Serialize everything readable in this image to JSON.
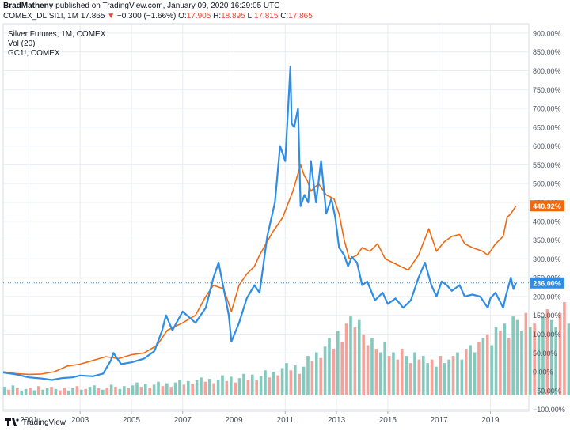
{
  "header": {
    "author": "BradMatheny",
    "published_text": "published on TradingView.com, January 09, 2020 16:29:05 UTC",
    "symbol": "COMEX_DL:SI1!, 1M",
    "last": "17.865",
    "change": "−0.300 (−1.66%)",
    "open_label": "O:",
    "open": "17.905",
    "high_label": "H:",
    "high": "18.895",
    "low_label": "L:",
    "low": "17.815",
    "close_label": "C:",
    "close": "17.865"
  },
  "legend": {
    "line1": "Silver Futures, 1M, COMEX",
    "line2": "Vol (20)",
    "line3": "GC1!, COMEX"
  },
  "footer": {
    "brand": "TradingView"
  },
  "colors": {
    "silver": "#2f8ee4",
    "gold": "#ee6a11",
    "vol_up": "#83c9bd",
    "vol_down": "#f1a39c",
    "grid": "#e8ecf2",
    "axis_text": "#4a4f5c"
  },
  "chart_data": {
    "type": "line",
    "y_scale": "percent",
    "ylim": [
      -105,
      925
    ],
    "y_ticks": [
      -100,
      -50,
      0,
      50,
      100,
      150,
      200,
      250,
      300,
      350,
      400,
      450,
      500,
      550,
      600,
      650,
      700,
      750,
      800,
      850,
      900
    ],
    "y_tick_labels": [
      "−100.00%",
      "−50.00%",
      "0.00%",
      "50.00%",
      "100.00%",
      "150.00%",
      "200.00%",
      "250.00%",
      "300.00%",
      "350.00%",
      "400.00%",
      "450.00%",
      "500.00%",
      "550.00%",
      "600.00%",
      "650.00%",
      "700.00%",
      "750.00%",
      "800.00%",
      "850.00%",
      "900.00%"
    ],
    "xlim": [
      2000.0,
      2020.5
    ],
    "x_ticks": [
      2001,
      2003,
      2005,
      2007,
      2009,
      2011,
      2013,
      2015,
      2017,
      2019
    ],
    "x_tick_labels": [
      "2001",
      "2003",
      "2005",
      "2007",
      "2009",
      "2011",
      "2013",
      "2015",
      "2017",
      "2019"
    ],
    "last_value_labels": {
      "silver": "236.00%",
      "gold": "440.92%"
    },
    "series": [
      {
        "key": "silver",
        "x": [
          2000.0,
          2000.5,
          2001.0,
          2001.5,
          2001.9,
          2002.3,
          2002.7,
          2003.0,
          2003.5,
          2003.9,
          2004.2,
          2004.3,
          2004.6,
          2005.0,
          2005.5,
          2005.9,
          2006.2,
          2006.35,
          2006.6,
          2007.0,
          2007.5,
          2007.9,
          2008.2,
          2008.4,
          2008.6,
          2008.8,
          2008.9,
          2009.2,
          2009.5,
          2009.8,
          2010.0,
          2010.3,
          2010.6,
          2010.8,
          2011.0,
          2011.2,
          2011.25,
          2011.35,
          2011.5,
          2011.6,
          2011.75,
          2011.9,
          2012.0,
          2012.2,
          2012.4,
          2012.6,
          2012.8,
          2012.95,
          2013.1,
          2013.3,
          2013.45,
          2013.6,
          2013.8,
          2014.0,
          2014.2,
          2014.5,
          2014.8,
          2015.0,
          2015.3,
          2015.6,
          2015.9,
          2016.2,
          2016.45,
          2016.7,
          2016.9,
          2017.1,
          2017.3,
          2017.5,
          2017.8,
          2018.0,
          2018.3,
          2018.6,
          2018.9,
          2019.0,
          2019.2,
          2019.5,
          2019.6,
          2019.8,
          2019.9,
          2020.0
        ],
        "values": [
          -2,
          -7,
          -15,
          -18,
          -22,
          -17,
          -15,
          -10,
          -12,
          -5,
          30,
          50,
          20,
          25,
          35,
          55,
          110,
          150,
          110,
          160,
          130,
          170,
          250,
          290,
          220,
          150,
          80,
          130,
          195,
          230,
          210,
          360,
          450,
          600,
          560,
          810,
          660,
          650,
          700,
          440,
          470,
          450,
          560,
          450,
          560,
          420,
          460,
          410,
          330,
          310,
          280,
          305,
          290,
          230,
          240,
          190,
          210,
          180,
          195,
          170,
          190,
          250,
          290,
          230,
          200,
          240,
          230,
          215,
          230,
          200,
          205,
          200,
          170,
          195,
          210,
          170,
          200,
          250,
          220,
          236
        ]
      },
      {
        "key": "gold",
        "x": [
          2000.0,
          2000.5,
          2001.0,
          2001.5,
          2002.0,
          2002.5,
          2003.0,
          2003.5,
          2004.0,
          2004.5,
          2005.0,
          2005.5,
          2006.0,
          2006.4,
          2006.7,
          2007.0,
          2007.5,
          2007.9,
          2008.2,
          2008.6,
          2008.9,
          2009.2,
          2009.5,
          2009.8,
          2010.0,
          2010.5,
          2010.9,
          2011.3,
          2011.6,
          2011.75,
          2011.85,
          2012.0,
          2012.3,
          2012.6,
          2012.9,
          2013.1,
          2013.3,
          2013.5,
          2013.8,
          2014.0,
          2014.3,
          2014.6,
          2014.9,
          2015.2,
          2015.5,
          2015.8,
          2016.0,
          2016.2,
          2016.6,
          2016.9,
          2017.2,
          2017.5,
          2017.8,
          2018.0,
          2018.3,
          2018.7,
          2018.9,
          2019.2,
          2019.5,
          2019.65,
          2019.8,
          2020.0
        ],
        "values": [
          0,
          -5,
          -7,
          -6,
          0,
          15,
          20,
          30,
          40,
          35,
          45,
          50,
          70,
          110,
          120,
          130,
          150,
          200,
          230,
          220,
          160,
          230,
          260,
          280,
          310,
          370,
          410,
          480,
          550,
          520,
          510,
          480,
          500,
          470,
          460,
          420,
          350,
          300,
          310,
          330,
          320,
          340,
          300,
          290,
          280,
          270,
          290,
          310,
          380,
          320,
          345,
          360,
          365,
          340,
          330,
          320,
          310,
          340,
          360,
          410,
          420,
          441
        ]
      }
    ],
    "volume": {
      "x_start": 2000.05,
      "step": 0.1667,
      "values": [
        12,
        8,
        14,
        10,
        6,
        9,
        11,
        7,
        13,
        8,
        10,
        12,
        9,
        7,
        11,
        6,
        10,
        13,
        8,
        9,
        12,
        14,
        10,
        8,
        11,
        15,
        12,
        9,
        13,
        10,
        14,
        18,
        12,
        16,
        11,
        15,
        19,
        13,
        17,
        12,
        18,
        22,
        15,
        20,
        16,
        21,
        25,
        19,
        23,
        17,
        22,
        28,
        20,
        26,
        18,
        24,
        30,
        22,
        29,
        21,
        27,
        35,
        25,
        33,
        28,
        38,
        45,
        35,
        42,
        30,
        40,
        55,
        48,
        60,
        52,
        68,
        80,
        65,
        90,
        75,
        100,
        110,
        95,
        105,
        85,
        70,
        80,
        65,
        60,
        75,
        55,
        60,
        50,
        65,
        55,
        45,
        60,
        50,
        55,
        45,
        50,
        40,
        55,
        45,
        50,
        55,
        60,
        50,
        65,
        70,
        60,
        75,
        80,
        85,
        70,
        95,
        90,
        100,
        80,
        110,
        105,
        90,
        115,
        95,
        100,
        85,
        110,
        120,
        105,
        95,
        115,
        130,
        100,
        110,
        85
      ],
      "up": [
        1,
        0,
        1,
        0,
        1,
        1,
        0,
        1,
        0,
        1,
        1,
        0,
        1,
        0,
        0,
        1,
        1,
        0,
        1,
        0,
        1,
        1,
        0,
        1,
        0,
        1,
        0,
        1,
        1,
        0,
        1,
        1,
        0,
        1,
        0,
        1,
        1,
        0,
        1,
        0,
        1,
        1,
        0,
        1,
        0,
        1,
        1,
        0,
        1,
        0,
        1,
        1,
        0,
        1,
        0,
        1,
        1,
        0,
        1,
        0,
        1,
        1,
        0,
        1,
        0,
        1,
        1,
        0,
        1,
        0,
        1,
        1,
        0,
        1,
        0,
        1,
        1,
        0,
        1,
        0,
        0,
        1,
        0,
        1,
        0,
        0,
        1,
        0,
        1,
        1,
        0,
        1,
        0,
        0,
        1,
        0,
        1,
        0,
        1,
        1,
        0,
        1,
        0,
        1,
        1,
        0,
        1,
        1,
        0,
        1,
        1,
        0,
        1,
        0,
        1,
        1,
        0,
        1,
        0,
        1,
        1,
        1,
        0,
        1,
        0,
        1,
        1,
        0,
        1,
        1,
        0,
        0,
        1,
        1,
        0
      ]
    }
  }
}
